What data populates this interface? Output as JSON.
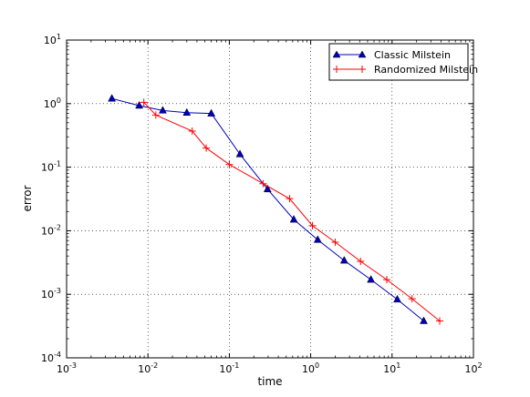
{
  "chart_data": {
    "type": "line",
    "xlabel": "time",
    "ylabel": "error",
    "xscale": "log",
    "yscale": "log",
    "xlim": [
      0.001,
      100
    ],
    "ylim": [
      0.0001,
      10
    ],
    "grid": true,
    "legend_position": "top-right",
    "x_ticks": [
      {
        "base": "10",
        "exp": "-3"
      },
      {
        "base": "10",
        "exp": "-2"
      },
      {
        "base": "10",
        "exp": "-1"
      },
      {
        "base": "10",
        "exp": "0"
      },
      {
        "base": "10",
        "exp": "1"
      },
      {
        "base": "10",
        "exp": "2"
      }
    ],
    "y_ticks": [
      {
        "base": "10",
        "exp": "-4"
      },
      {
        "base": "10",
        "exp": "-3"
      },
      {
        "base": "10",
        "exp": "-2"
      },
      {
        "base": "10",
        "exp": "-1"
      },
      {
        "base": "10",
        "exp": "0"
      },
      {
        "base": "10",
        "exp": "1"
      }
    ],
    "series": [
      {
        "name": "Classic Milstein",
        "color": "#0000bb",
        "marker": "triangle",
        "x": [
          0.0036,
          0.0078,
          0.0152,
          0.03,
          0.06,
          0.135,
          0.295,
          0.62,
          1.22,
          2.58,
          5.5,
          11.6,
          24.5
        ],
        "y": [
          1.2,
          0.93,
          0.78,
          0.72,
          0.7,
          0.16,
          0.045,
          0.015,
          0.0072,
          0.0034,
          0.0017,
          0.00083,
          0.00038
        ]
      },
      {
        "name": "Randomized Milstein",
        "color": "#ff0000",
        "marker": "plus",
        "x": [
          0.0089,
          0.0125,
          0.035,
          0.052,
          0.1,
          0.26,
          0.55,
          1.05,
          2.0,
          4.1,
          8.6,
          17.6,
          38.5
        ],
        "y": [
          1.05,
          0.66,
          0.37,
          0.2,
          0.11,
          0.055,
          0.032,
          0.012,
          0.0066,
          0.0033,
          0.0017,
          0.00085,
          0.00038
        ]
      }
    ]
  }
}
